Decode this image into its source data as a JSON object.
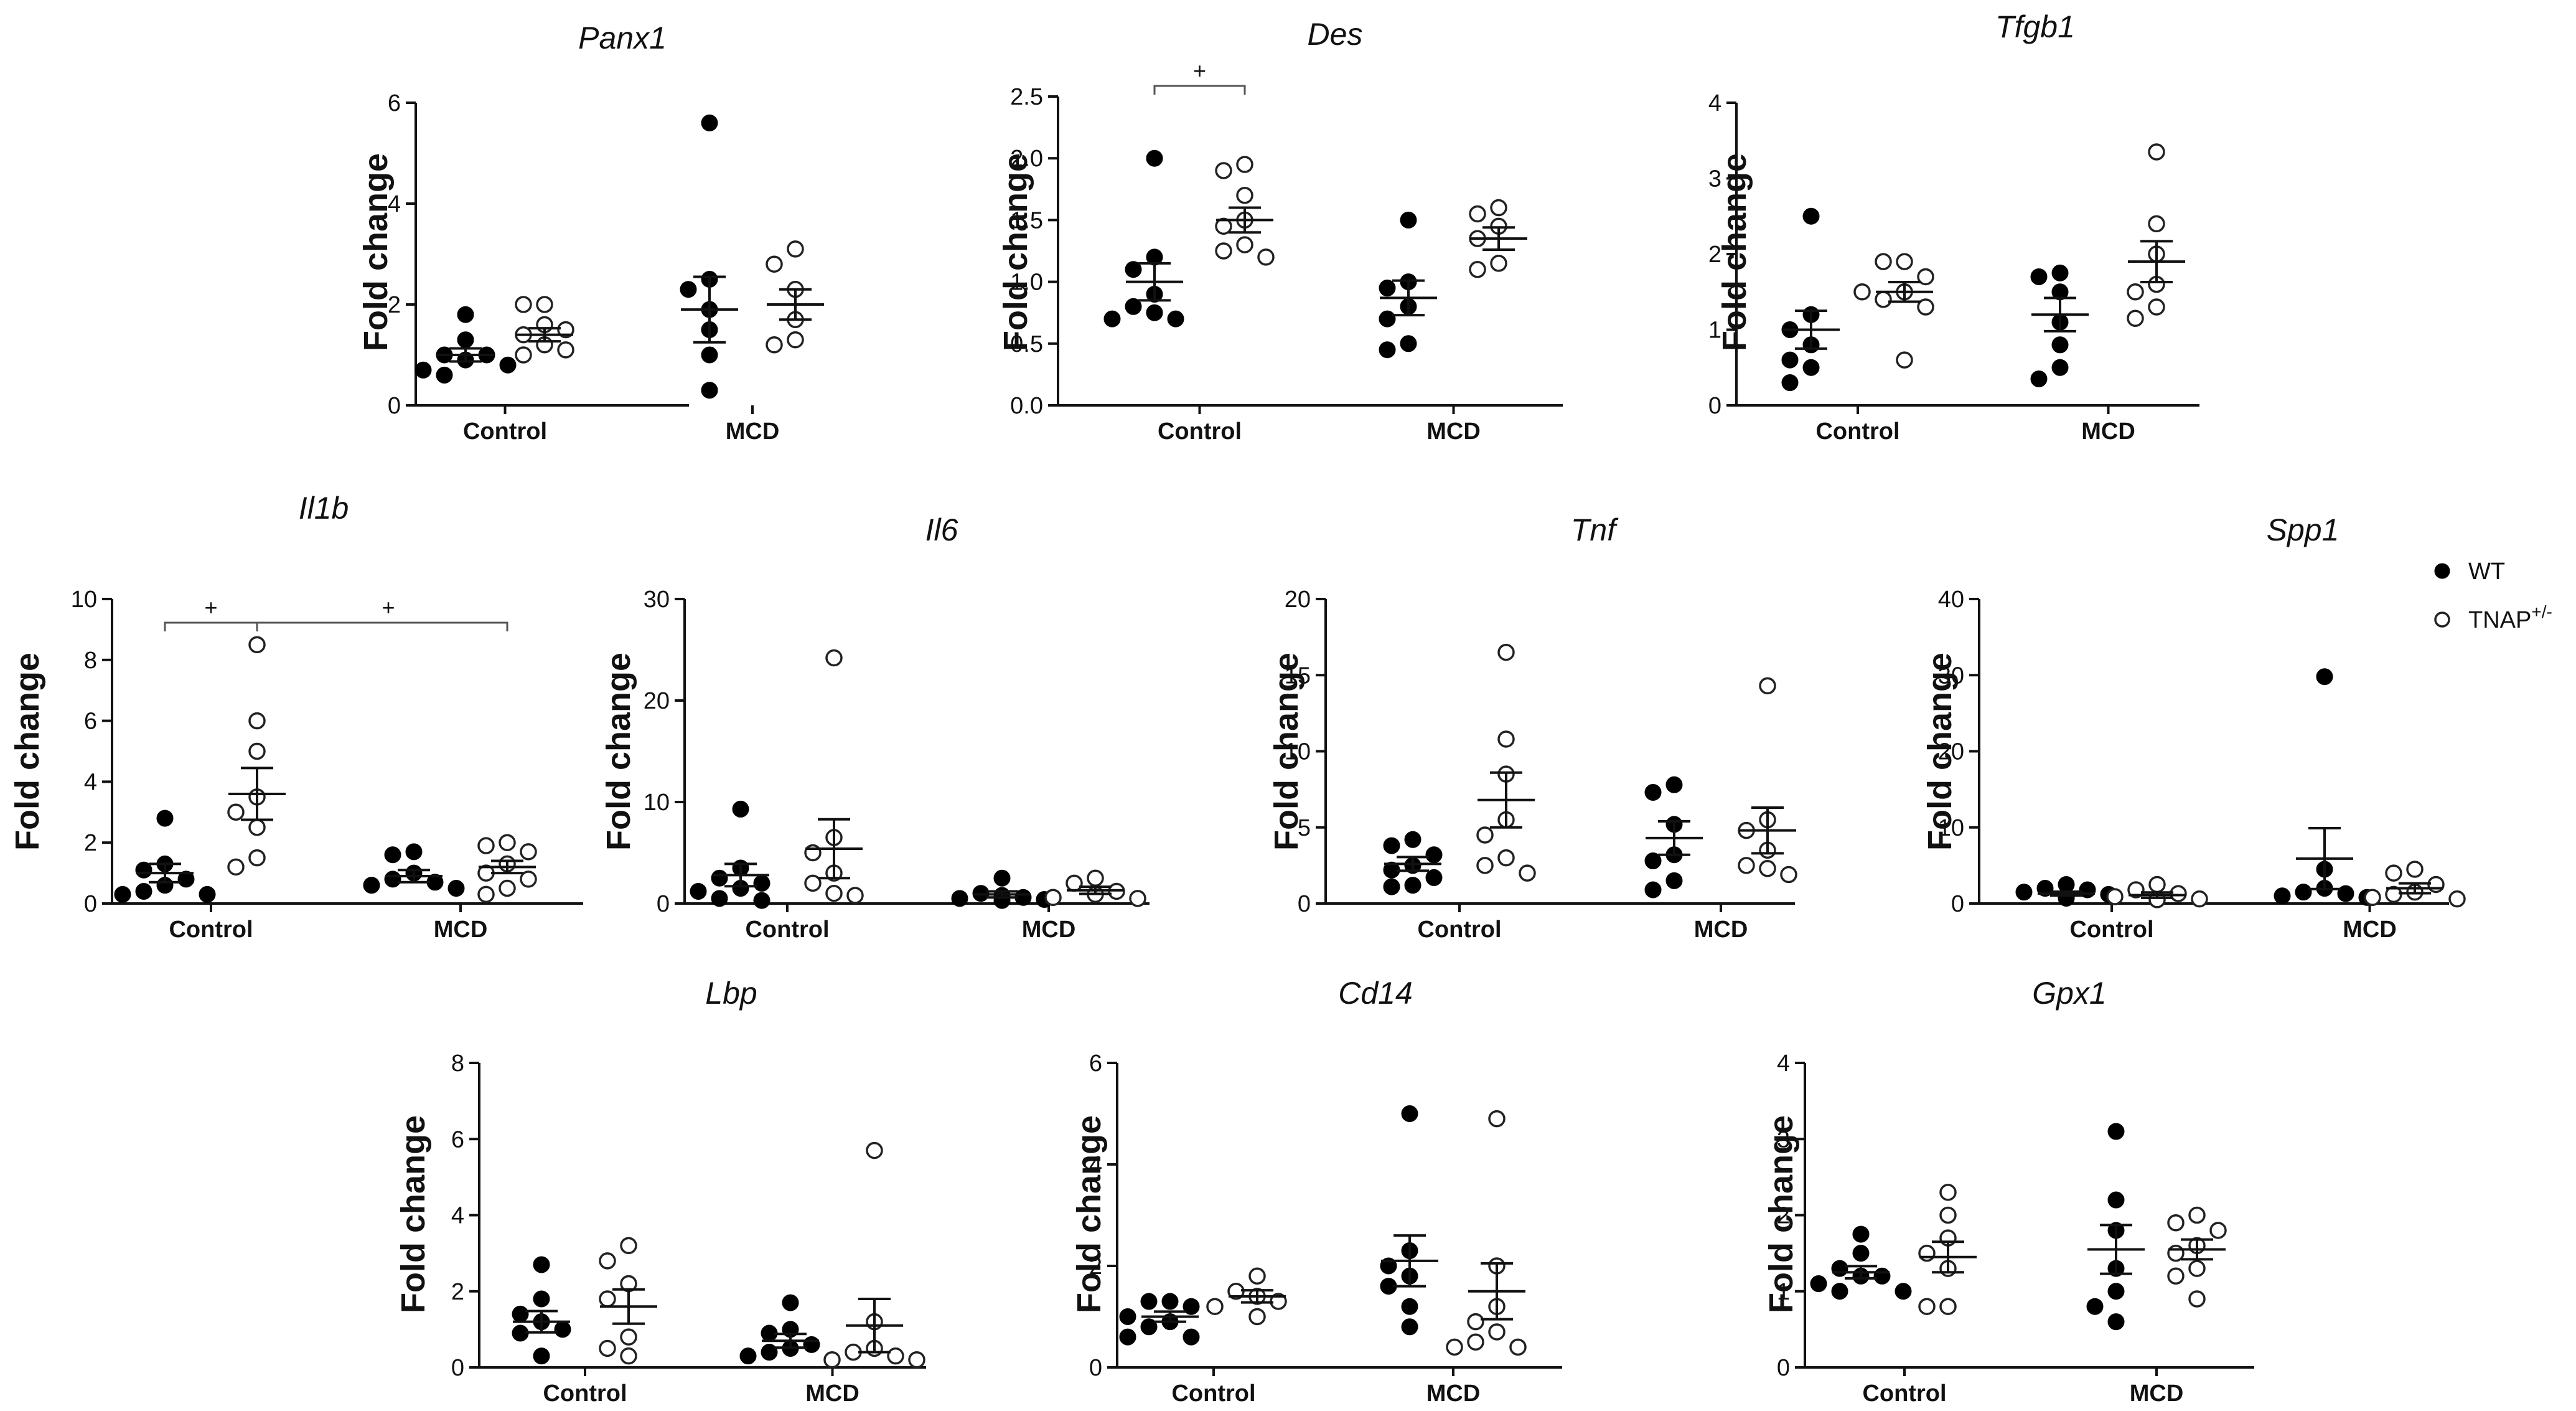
{
  "legend": {
    "wt_label": "WT",
    "tnap_label": "TNAP",
    "tnap_superscript": "+/-"
  },
  "chart_data": [
    {
      "type": "scatter",
      "title": "Panx1",
      "ylabel": "Fold change",
      "ylim": [
        0,
        6
      ],
      "yticks": [
        0,
        2,
        4,
        6
      ],
      "categories": [
        "Control",
        "MCD"
      ],
      "series": [
        {
          "name": "WT",
          "group": "Control",
          "values": [
            1.8,
            1.3,
            1.0,
            0.9,
            1.0,
            0.7,
            0.8,
            0.6
          ],
          "mean": 1.0,
          "sem": 0.13
        },
        {
          "name": "TNAP+/-",
          "group": "Control",
          "values": [
            2.0,
            1.6,
            1.4,
            1.2,
            1.5,
            1.1,
            1.0,
            2.0
          ],
          "mean": 1.4,
          "sem": 0.13
        },
        {
          "name": "WT",
          "group": "MCD",
          "values": [
            5.6,
            2.5,
            2.3,
            1.5,
            1.0,
            0.3,
            1.9
          ],
          "mean": 1.9,
          "sem": 0.65
        },
        {
          "name": "TNAP+/-",
          "group": "MCD",
          "values": [
            3.1,
            2.8,
            2.3,
            1.7,
            1.3,
            1.2
          ],
          "mean": 2.0,
          "sem": 0.3
        }
      ],
      "annotations": []
    },
    {
      "type": "scatter",
      "title": "Des",
      "ylabel": "Fold change",
      "ylim": [
        0,
        2.5
      ],
      "yticks": [
        "0.0",
        "0.5",
        "1.0",
        "1.5",
        "2.0",
        "2.5"
      ],
      "categories": [
        "Control",
        "MCD"
      ],
      "series": [
        {
          "name": "WT",
          "group": "Control",
          "values": [
            2.0,
            1.2,
            1.1,
            0.9,
            0.8,
            0.75,
            0.7,
            0.7
          ],
          "mean": 1.0,
          "sem": 0.15
        },
        {
          "name": "TNAP+/-",
          "group": "Control",
          "values": [
            1.95,
            1.9,
            1.7,
            1.5,
            1.45,
            1.3,
            1.25,
            1.2
          ],
          "mean": 1.5,
          "sem": 0.1
        },
        {
          "name": "WT",
          "group": "MCD",
          "values": [
            1.5,
            1.0,
            0.95,
            0.8,
            0.7,
            0.5,
            0.45
          ],
          "mean": 0.87,
          "sem": 0.14
        },
        {
          "name": "TNAP+/-",
          "group": "MCD",
          "values": [
            1.6,
            1.55,
            1.45,
            1.35,
            1.15,
            1.1
          ],
          "mean": 1.35,
          "sem": 0.09
        }
      ],
      "annotations": [
        {
          "label": "+",
          "from": 0,
          "to": 1
        }
      ]
    },
    {
      "type": "scatter",
      "title": "Tfgb1",
      "ylabel": "Fold change",
      "ylim": [
        0,
        4
      ],
      "yticks": [
        0,
        1,
        2,
        3,
        4
      ],
      "categories": [
        "Control",
        "MCD"
      ],
      "series": [
        {
          "name": "WT",
          "group": "Control",
          "values": [
            2.5,
            1.2,
            1.0,
            0.8,
            0.6,
            0.5,
            0.3
          ],
          "mean": 1.0,
          "sem": 0.25
        },
        {
          "name": "TNAP+/-",
          "group": "Control",
          "values": [
            1.9,
            1.9,
            1.7,
            1.5,
            1.4,
            1.5,
            1.3,
            0.6
          ],
          "mean": 1.5,
          "sem": 0.13
        },
        {
          "name": "WT",
          "group": "MCD",
          "values": [
            1.75,
            1.7,
            1.5,
            1.1,
            0.8,
            0.5,
            0.35
          ],
          "mean": 1.2,
          "sem": 0.22
        },
        {
          "name": "TNAP+/-",
          "group": "MCD",
          "values": [
            3.35,
            2.4,
            2.0,
            1.6,
            1.5,
            1.3,
            1.15
          ],
          "mean": 1.9,
          "sem": 0.27
        }
      ],
      "annotations": []
    },
    {
      "type": "scatter",
      "title": "Il1b",
      "ylabel": "Fold change",
      "ylim": [
        0,
        10
      ],
      "yticks": [
        0,
        2,
        4,
        6,
        8,
        10
      ],
      "categories": [
        "Control",
        "MCD"
      ],
      "series": [
        {
          "name": "WT",
          "group": "Control",
          "values": [
            2.8,
            1.3,
            1.1,
            0.8,
            0.6,
            0.4,
            0.3,
            0.3
          ],
          "mean": 1.0,
          "sem": 0.3
        },
        {
          "name": "TNAP+/-",
          "group": "Control",
          "values": [
            8.5,
            6.0,
            5.0,
            3.5,
            3.0,
            2.5,
            1.5,
            1.2
          ],
          "mean": 3.6,
          "sem": 0.85
        },
        {
          "name": "WT",
          "group": "MCD",
          "values": [
            1.7,
            1.6,
            1.0,
            0.8,
            0.7,
            0.6,
            0.5
          ],
          "mean": 0.9,
          "sem": 0.2
        },
        {
          "name": "TNAP+/-",
          "group": "MCD",
          "values": [
            2.0,
            1.9,
            1.7,
            1.3,
            1.0,
            0.8,
            0.5,
            0.3
          ],
          "mean": 1.2,
          "sem": 0.2
        }
      ],
      "annotations": [
        {
          "label": "+",
          "from": 0,
          "to": 1
        },
        {
          "label": "+",
          "from": 1,
          "to": 3
        }
      ]
    },
    {
      "type": "scatter",
      "title": "Il6",
      "ylabel": "Fold change",
      "ylim": [
        0,
        30
      ],
      "yticks": [
        0,
        10,
        20,
        30
      ],
      "categories": [
        "Control",
        "MCD"
      ],
      "series": [
        {
          "name": "WT",
          "group": "Control",
          "values": [
            9.3,
            3.5,
            2.5,
            2.0,
            1.5,
            1.2,
            0.5,
            0.3
          ],
          "mean": 2.8,
          "sem": 1.1
        },
        {
          "name": "TNAP+/-",
          "group": "Control",
          "values": [
            24.2,
            6.5,
            5.0,
            3.0,
            2.0,
            1.0,
            0.8
          ],
          "mean": 5.4,
          "sem": 2.9
        },
        {
          "name": "WT",
          "group": "MCD",
          "values": [
            2.5,
            1.0,
            0.8,
            0.6,
            0.5,
            0.4,
            0.3
          ],
          "mean": 0.9,
          "sem": 0.3
        },
        {
          "name": "TNAP+/-",
          "group": "MCD",
          "values": [
            2.5,
            2.0,
            1.2,
            0.9,
            0.6,
            0.5
          ],
          "mean": 1.3,
          "sem": 0.35
        }
      ],
      "annotations": []
    },
    {
      "type": "scatter",
      "title": "Tnf",
      "ylabel": "Fold change",
      "ylim": [
        0,
        20
      ],
      "yticks": [
        0,
        5,
        10,
        15,
        20
      ],
      "categories": [
        "Control",
        "MCD"
      ],
      "series": [
        {
          "name": "WT",
          "group": "Control",
          "values": [
            4.2,
            3.8,
            3.2,
            2.5,
            2.2,
            1.7,
            1.2,
            1.1
          ],
          "mean": 2.6,
          "sem": 0.45
        },
        {
          "name": "TNAP+/-",
          "group": "Control",
          "values": [
            16.5,
            10.8,
            8.5,
            5.5,
            4.5,
            3.0,
            2.5,
            2.0
          ],
          "mean": 6.8,
          "sem": 1.8
        },
        {
          "name": "WT",
          "group": "MCD",
          "values": [
            7.8,
            7.3,
            5.2,
            3.2,
            2.8,
            1.5,
            0.9
          ],
          "mean": 4.3,
          "sem": 1.1
        },
        {
          "name": "TNAP+/-",
          "group": "MCD",
          "values": [
            14.3,
            5.5,
            4.8,
            3.5,
            2.5,
            2.3,
            1.9
          ],
          "mean": 4.8,
          "sem": 1.5
        }
      ],
      "annotations": []
    },
    {
      "type": "scatter",
      "title": "Spp1",
      "ylabel": "Fold change",
      "ylim": [
        0,
        40
      ],
      "yticks": [
        0,
        10,
        20,
        30,
        40
      ],
      "categories": [
        "Control",
        "MCD"
      ],
      "series": [
        {
          "name": "WT",
          "group": "Control",
          "values": [
            2.5,
            2.0,
            1.8,
            1.5,
            1.2,
            1.0,
            0.8,
            0.7
          ],
          "mean": 1.3,
          "sem": 0.25
        },
        {
          "name": "TNAP+/-",
          "group": "Control",
          "values": [
            2.5,
            1.8,
            1.3,
            0.9,
            0.6,
            0.5
          ],
          "mean": 1.1,
          "sem": 0.35
        },
        {
          "name": "WT",
          "group": "MCD",
          "values": [
            29.8,
            4.5,
            2.0,
            1.5,
            1.3,
            1.0,
            0.8
          ],
          "mean": 5.9,
          "sem": 4.0
        },
        {
          "name": "TNAP+/-",
          "group": "MCD",
          "values": [
            4.5,
            4.0,
            2.5,
            1.5,
            1.2,
            0.8,
            0.6
          ],
          "mean": 2.0,
          "sem": 0.65
        }
      ],
      "annotations": []
    },
    {
      "type": "scatter",
      "title": "Lbp",
      "ylabel": "Fold change",
      "ylim": [
        0,
        8
      ],
      "yticks": [
        0,
        2,
        4,
        6,
        8
      ],
      "categories": [
        "Control",
        "MCD"
      ],
      "series": [
        {
          "name": "WT",
          "group": "Control",
          "values": [
            2.7,
            1.8,
            1.4,
            1.2,
            1.0,
            0.9,
            0.3
          ],
          "mean": 1.2,
          "sem": 0.28
        },
        {
          "name": "TNAP+/-",
          "group": "Control",
          "values": [
            3.2,
            2.8,
            2.2,
            1.8,
            0.8,
            0.5,
            0.3
          ],
          "mean": 1.6,
          "sem": 0.45
        },
        {
          "name": "WT",
          "group": "MCD",
          "values": [
            1.7,
            1.0,
            0.9,
            0.6,
            0.5,
            0.4,
            0.3
          ],
          "mean": 0.7,
          "sem": 0.18
        },
        {
          "name": "TNAP+/-",
          "group": "MCD",
          "values": [
            5.7,
            1.2,
            0.5,
            0.4,
            0.3,
            0.2,
            0.2
          ],
          "mean": 1.1,
          "sem": 0.7
        }
      ],
      "annotations": []
    },
    {
      "type": "scatter",
      "title": "Cd14",
      "ylabel": "Fold change",
      "ylim": [
        0,
        6
      ],
      "yticks": [
        0,
        2,
        4,
        6
      ],
      "categories": [
        "Control",
        "MCD"
      ],
      "series": [
        {
          "name": "WT",
          "group": "Control",
          "values": [
            1.3,
            1.3,
            1.2,
            1.0,
            0.9,
            0.8,
            0.6,
            0.6
          ],
          "mean": 1.0,
          "sem": 0.1
        },
        {
          "name": "TNAP+/-",
          "group": "Control",
          "values": [
            1.8,
            1.5,
            1.4,
            1.3,
            1.2,
            1.0
          ],
          "mean": 1.4,
          "sem": 0.12
        },
        {
          "name": "WT",
          "group": "MCD",
          "values": [
            5.0,
            2.3,
            2.0,
            1.8,
            1.6,
            1.2,
            0.8
          ],
          "mean": 2.1,
          "sem": 0.5
        },
        {
          "name": "TNAP+/-",
          "group": "MCD",
          "values": [
            4.9,
            2.0,
            1.2,
            0.9,
            0.7,
            0.5,
            0.4,
            0.4
          ],
          "mean": 1.5,
          "sem": 0.55
        }
      ],
      "annotations": []
    },
    {
      "type": "scatter",
      "title": "Gpx1",
      "ylabel": "Fold change",
      "ylim": [
        0,
        4
      ],
      "yticks": [
        0,
        1,
        2,
        3,
        4
      ],
      "categories": [
        "Control",
        "MCD"
      ],
      "series": [
        {
          "name": "WT",
          "group": "Control",
          "values": [
            1.75,
            1.5,
            1.3,
            1.2,
            1.2,
            1.1,
            1.0,
            1.0
          ],
          "mean": 1.25,
          "sem": 0.08
        },
        {
          "name": "TNAP+/-",
          "group": "Control",
          "values": [
            2.3,
            2.0,
            1.7,
            1.5,
            1.3,
            0.8,
            0.8
          ],
          "mean": 1.45,
          "sem": 0.2
        },
        {
          "name": "WT",
          "group": "MCD",
          "values": [
            3.1,
            2.2,
            1.8,
            1.3,
            1.0,
            0.8,
            0.6
          ],
          "mean": 1.55,
          "sem": 0.32
        },
        {
          "name": "TNAP+/-",
          "group": "MCD",
          "values": [
            2.0,
            1.9,
            1.8,
            1.6,
            1.5,
            1.3,
            1.2,
            0.9
          ],
          "mean": 1.55,
          "sem": 0.13
        }
      ],
      "annotations": []
    }
  ]
}
